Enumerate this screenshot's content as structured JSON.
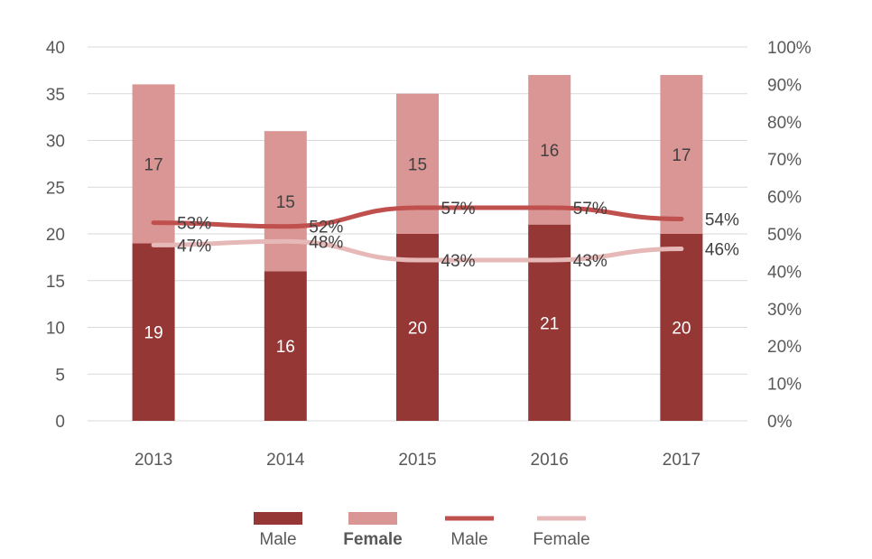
{
  "chart_data": {
    "type": "bar",
    "stacked": true,
    "categories": [
      "2013",
      "2014",
      "2015",
      "2016",
      "2017"
    ],
    "series": [
      {
        "name": "Male",
        "type": "bar",
        "axis": "left",
        "color": "#953735",
        "values": [
          19,
          16,
          20,
          21,
          20
        ]
      },
      {
        "name": "Female",
        "type": "bar",
        "axis": "left",
        "color": "#D99694",
        "values": [
          17,
          15,
          15,
          16,
          17
        ]
      },
      {
        "name": "Male",
        "type": "line",
        "axis": "right",
        "color": "#C0504D",
        "values": [
          53,
          52,
          57,
          57,
          54
        ],
        "labels": [
          "53%",
          "52%",
          "57%",
          "57%",
          "54%"
        ]
      },
      {
        "name": "Female",
        "type": "line",
        "axis": "right",
        "color": "#E6B9B8",
        "values": [
          47,
          48,
          43,
          43,
          46
        ],
        "labels": [
          "47%",
          "48%",
          "43%",
          "43%",
          "46%"
        ]
      }
    ],
    "left_axis": {
      "min": 0,
      "max": 40,
      "ticks": [
        "0",
        "5",
        "10",
        "15",
        "20",
        "25",
        "30",
        "35",
        "40"
      ]
    },
    "right_axis": {
      "min": 0,
      "max": 100,
      "ticks": [
        "0%",
        "10%",
        "20%",
        "30%",
        "40%",
        "50%",
        "60%",
        "70%",
        "80%",
        "90%",
        "100%"
      ]
    },
    "grid": true,
    "legend_position": "bottom",
    "title": "",
    "xlabel": "",
    "ylabel": ""
  }
}
